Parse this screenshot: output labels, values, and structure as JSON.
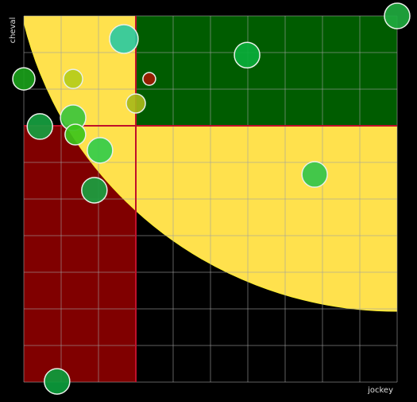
{
  "chart_data": {
    "type": "scatter",
    "x_label": "jockey",
    "y_label": "cheval",
    "xlim": [
      0,
      10
    ],
    "ylim": [
      0,
      10
    ],
    "xticks": [
      0,
      1,
      2,
      3,
      4,
      5,
      6,
      7,
      8,
      9,
      10
    ],
    "yticks": [
      0,
      1,
      2,
      3,
      4,
      5,
      6,
      7,
      8,
      9,
      10
    ],
    "grid": true,
    "x": [
      10,
      2.68,
      5.98,
      0,
      1.32,
      3.36,
      3.0,
      1.32,
      0.43,
      1.38,
      2.04,
      7.79,
      1.89,
      0.89
    ],
    "values": [
      10,
      9.37,
      8.93,
      8.28,
      8.28,
      8.28,
      7.61,
      7.22,
      6.98,
      6.76,
      6.33,
      5.67,
      5.24,
      0.02
    ],
    "sizes": [
      16,
      18,
      16,
      14,
      12,
      8,
      12,
      16,
      16,
      13,
      16,
      16,
      16,
      16
    ],
    "colors": [
      "#1faa3f",
      "#2ec9a0",
      "#0aad3a",
      "#1a9e1a",
      "#b5cc1a",
      "#a01a00",
      "#a8b81a",
      "#3cc43c",
      "#16a040",
      "#3cc41a",
      "#33cc4a",
      "#33c44a",
      "#1aa040",
      "#0c9c3c"
    ]
  }
}
